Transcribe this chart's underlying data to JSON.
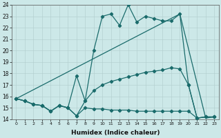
{
  "xlabel": "Humidex (Indice chaleur)",
  "background_color": "#cce8e8",
  "grid_color": "#b0cccc",
  "line_color": "#1a6b6b",
  "xlim": [
    0,
    23
  ],
  "ylim": [
    14,
    24
  ],
  "yticks": [
    14,
    15,
    16,
    17,
    18,
    19,
    20,
    21,
    22,
    23,
    24
  ],
  "xticks": [
    0,
    1,
    2,
    3,
    4,
    5,
    6,
    7,
    8,
    9,
    10,
    11,
    12,
    13,
    14,
    15,
    16,
    17,
    18,
    19,
    20,
    21,
    22,
    23
  ],
  "series1_x": [
    0,
    1,
    2,
    3,
    4,
    5,
    6,
    7,
    8,
    9,
    10,
    11,
    12,
    13,
    14,
    15,
    16,
    17,
    18,
    19,
    20,
    21,
    22,
    23
  ],
  "series1_y": [
    15.8,
    15.6,
    15.3,
    15.2,
    14.7,
    15.2,
    15.0,
    14.3,
    15.6,
    20.0,
    23.0,
    23.2,
    22.2,
    24.0,
    22.5,
    23.0,
    22.8,
    22.6,
    22.6,
    23.2,
    17.0,
    14.1,
    14.2,
    14.2
  ],
  "series2_x": [
    0,
    1,
    2,
    3,
    4,
    5,
    6,
    7,
    8,
    9,
    10,
    11,
    12,
    13,
    14,
    15,
    16,
    17,
    18,
    19,
    20,
    21,
    22,
    23
  ],
  "series2_y": [
    15.8,
    15.6,
    15.3,
    15.2,
    14.7,
    15.2,
    15.0,
    17.8,
    15.6,
    16.5,
    17.0,
    17.3,
    17.5,
    17.7,
    17.9,
    18.1,
    18.2,
    18.3,
    18.5,
    18.4,
    17.0,
    14.1,
    14.2,
    14.2
  ],
  "series3_x": [
    0,
    1,
    2,
    3,
    4,
    5,
    6,
    7,
    8,
    9,
    10,
    11,
    12,
    13,
    14,
    15,
    16,
    17,
    18,
    19,
    20,
    21,
    22,
    23
  ],
  "series3_y": [
    15.8,
    15.6,
    15.3,
    15.2,
    14.7,
    15.2,
    15.0,
    14.3,
    15.0,
    14.9,
    14.9,
    14.8,
    14.8,
    14.8,
    14.7,
    14.7,
    14.7,
    14.7,
    14.7,
    14.7,
    14.7,
    14.1,
    14.2,
    14.2
  ],
  "series4_x": [
    0,
    19,
    22,
    23
  ],
  "series4_y": [
    15.8,
    23.2,
    14.1,
    14.2
  ]
}
